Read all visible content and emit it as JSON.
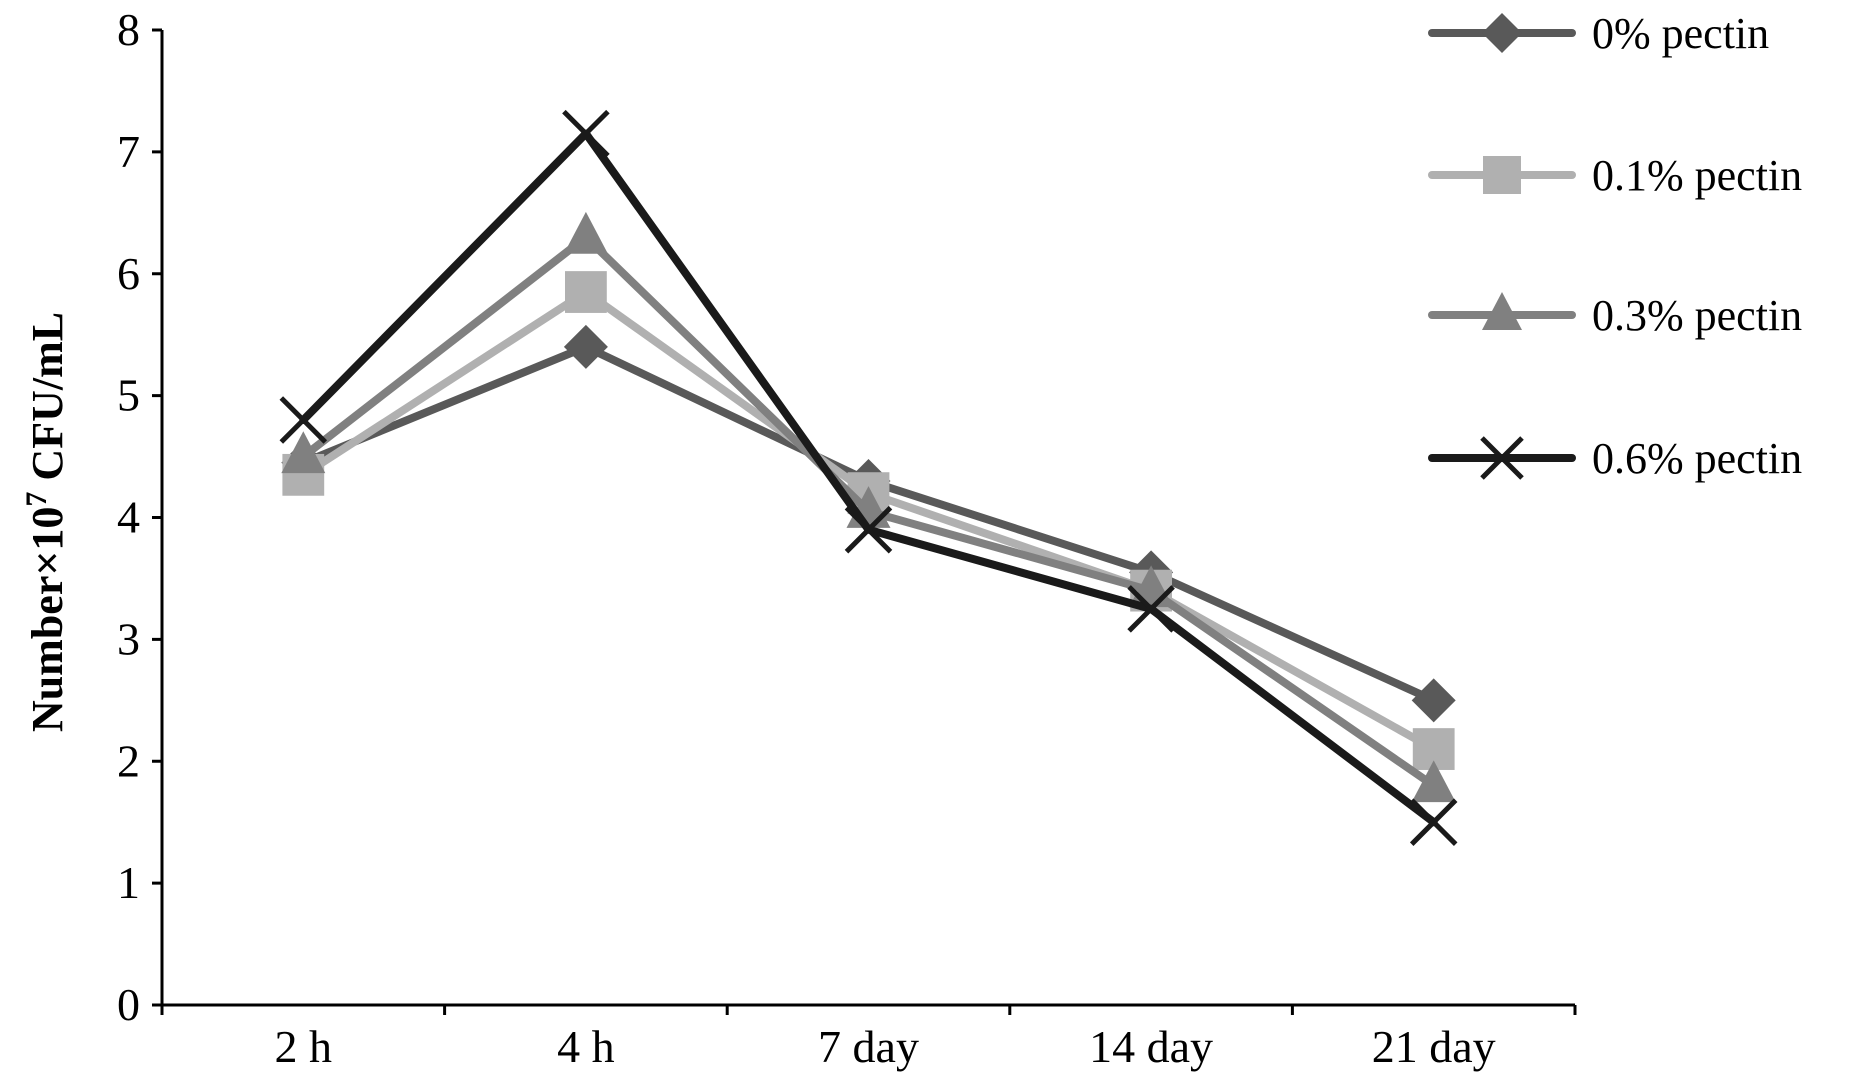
{
  "chart_data": {
    "type": "line",
    "title": "",
    "xlabel": "",
    "ylabel": "Number×10",
    "ylabel_sup": "7",
    "ylabel_suffix": " CFU/mL",
    "ylim": [
      0,
      8
    ],
    "yticks": [
      "0",
      "1",
      "2",
      "3",
      "4",
      "5",
      "6",
      "7",
      "8"
    ],
    "categories": [
      "2 h",
      "4 h",
      "7 day",
      "14 day",
      "21 day"
    ],
    "grid": false,
    "legend_position": "top-right",
    "series": [
      {
        "name": "0% pectin",
        "values": [
          4.45,
          5.4,
          4.3,
          3.55,
          2.5
        ],
        "marker": "diamond",
        "color": "#595959"
      },
      {
        "name": "0.1% pectin",
        "values": [
          4.35,
          5.85,
          4.2,
          3.4,
          2.1
        ],
        "marker": "square",
        "color": "#b0b0b0"
      },
      {
        "name": "0.3% pectin",
        "values": [
          4.5,
          6.3,
          4.05,
          3.4,
          1.8
        ],
        "marker": "triangle",
        "color": "#808080"
      },
      {
        "name": "0.6% pectin",
        "values": [
          4.8,
          7.15,
          3.9,
          3.25,
          1.5
        ],
        "marker": "x",
        "color": "#1a1a1a"
      }
    ]
  }
}
